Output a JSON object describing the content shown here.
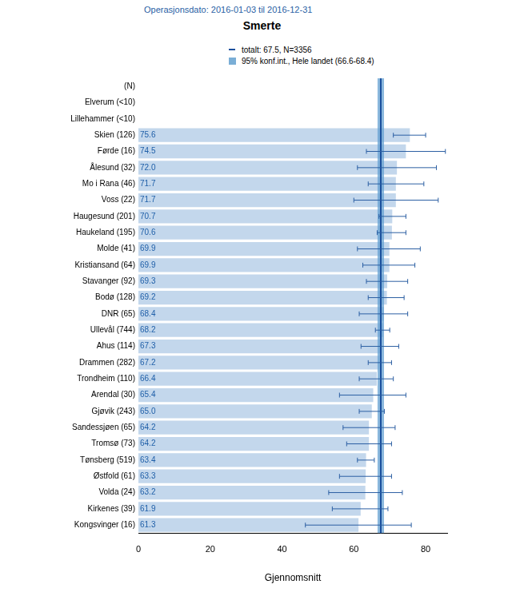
{
  "chart_data": {
    "type": "bar",
    "orientation": "horizontal",
    "title": "Smerte",
    "subtitle": "Operasjonsdato: 2016-01-03 til 2016-12-31",
    "x_label": "Gjennomsnitt",
    "categories": [
      "(N)",
      "Elverum (<10)",
      "Lillehammer (<10)",
      "Skien (126)",
      "Førde (16)",
      "Ålesund (32)",
      "Mo i Rana (46)",
      "Voss (22)",
      "Haugesund (201)",
      "Haukeland (195)",
      "Molde (41)",
      "Kristiansand (64)",
      "Stavanger (92)",
      "Bodø (128)",
      "DNR (65)",
      "Ullevål (744)",
      "Ahus (114)",
      "Drammen (282)",
      "Trondheim (110)",
      "Arendal (30)",
      "Gjøvik (243)",
      "Sandessjøen (65)",
      "Tromsø (73)",
      "Tønsberg (519)",
      "Østfold (61)",
      "Volda (24)",
      "Kirkenes (39)",
      "Kongsvinger (16)"
    ],
    "values": [
      null,
      null,
      null,
      75.6,
      74.5,
      72.0,
      71.7,
      71.7,
      70.7,
      70.6,
      69.9,
      69.9,
      69.3,
      69.2,
      68.4,
      68.2,
      67.3,
      67.2,
      66.4,
      65.4,
      65.0,
      64.2,
      64.2,
      63.4,
      63.3,
      63.2,
      61.9,
      61.3
    ],
    "value_labels": [
      null,
      null,
      null,
      "75.6",
      "74.5",
      "72.0",
      "71.7",
      "71.7",
      "70.7",
      "70.6",
      "69.9",
      "69.9",
      "69.3",
      "69.2",
      "68.4",
      "68.2",
      "67.3",
      "67.2",
      "66.4",
      "65.4",
      "65.0",
      "64.2",
      "64.2",
      "63.4",
      "63.3",
      "63.2",
      "61.9",
      "61.3"
    ],
    "error_low": [
      null,
      null,
      null,
      71.0,
      63.5,
      61.0,
      64.0,
      60.0,
      67.0,
      66.5,
      61.0,
      62.5,
      63.5,
      64.0,
      61.5,
      66.0,
      62.0,
      64.0,
      61.5,
      56.0,
      61.5,
      57.0,
      58.0,
      61.0,
      56.0,
      53.0,
      54.0,
      46.5
    ],
    "error_high": [
      null,
      null,
      null,
      80.0,
      85.5,
      83.0,
      79.5,
      83.5,
      74.5,
      74.5,
      78.5,
      77.0,
      75.0,
      74.0,
      75.0,
      70.0,
      72.5,
      70.5,
      71.0,
      74.5,
      68.5,
      71.5,
      70.5,
      65.7,
      70.5,
      73.5,
      69.5,
      76.0
    ],
    "reference": {
      "value": 67.5,
      "label": "totalt: 67.5, N=3356"
    },
    "reference_band": {
      "low": 66.6,
      "high": 68.4,
      "label": "95% konf.int., Hele landet (66.6-68.4)"
    },
    "color": "#c3d7ec",
    "xlim": [
      0,
      86
    ],
    "xticks": [
      0,
      20,
      40,
      60,
      80
    ],
    "grid": false,
    "data_labels": true,
    "legend": "top"
  }
}
